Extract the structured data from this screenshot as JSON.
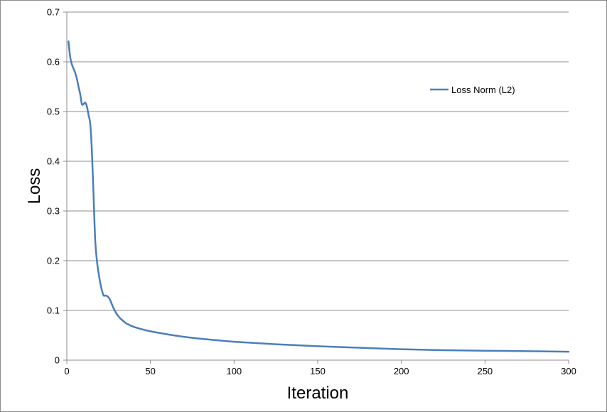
{
  "chart_data": {
    "type": "line",
    "title": "",
    "xlabel": "Iteration",
    "ylabel": "Loss",
    "xlim": [
      0,
      300
    ],
    "ylim": [
      0,
      0.7
    ],
    "x_ticks": [
      "0",
      "50",
      "100",
      "150",
      "200",
      "250",
      "300"
    ],
    "y_ticks": [
      "0",
      "0.1",
      "0.2",
      "0.3",
      "0.4",
      "0.5",
      "0.6",
      "0.7"
    ],
    "grid": "horizontal",
    "legend_position": "top-right",
    "series": [
      {
        "name": "Loss Norm (L2)",
        "color": "#4a7ebb",
        "x": [
          1,
          2,
          3,
          5,
          6,
          7,
          8,
          9,
          10,
          11,
          12,
          13,
          14,
          15,
          16,
          17,
          18,
          19,
          20,
          21,
          22,
          23,
          24,
          25,
          26,
          27,
          28,
          30,
          32,
          34,
          36,
          40,
          45,
          50,
          60,
          70,
          80,
          90,
          100,
          125,
          150,
          175,
          200,
          225,
          250,
          275,
          300
        ],
        "y": [
          0.641,
          0.61,
          0.595,
          0.578,
          0.566,
          0.55,
          0.535,
          0.515,
          0.515,
          0.518,
          0.51,
          0.493,
          0.475,
          0.42,
          0.33,
          0.24,
          0.2,
          0.175,
          0.155,
          0.14,
          0.13,
          0.13,
          0.129,
          0.126,
          0.12,
          0.112,
          0.104,
          0.092,
          0.084,
          0.078,
          0.073,
          0.067,
          0.062,
          0.058,
          0.052,
          0.047,
          0.043,
          0.04,
          0.037,
          0.032,
          0.028,
          0.025,
          0.022,
          0.02,
          0.019,
          0.018,
          0.017
        ]
      }
    ]
  }
}
